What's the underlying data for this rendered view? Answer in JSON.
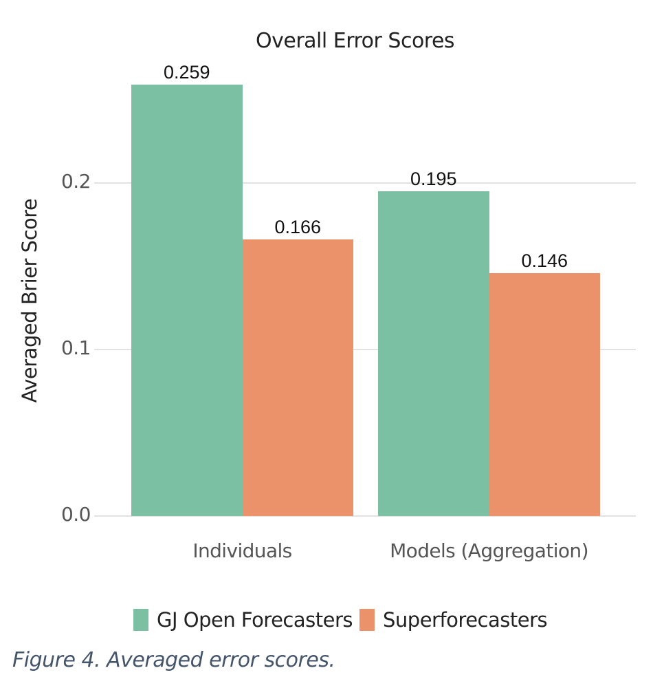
{
  "chart_data": {
    "type": "bar",
    "title": "Overall Error Scores",
    "xlabel": "",
    "ylabel": "Averaged Brier Score",
    "categories": [
      "Individuals",
      "Models (Aggregation)"
    ],
    "series": [
      {
        "name": "GJ Open Forecasters",
        "color": "#7cc0a4",
        "values": [
          0.259,
          0.195
        ]
      },
      {
        "name": "Superforecasters",
        "color": "#ec926a",
        "values": [
          0.166,
          0.146
        ]
      }
    ],
    "data_labels": [
      [
        "0.259",
        "0.195"
      ],
      [
        "0.166",
        "0.146"
      ]
    ],
    "ylim": [
      0,
      0.27
    ],
    "yticks": [
      0.0,
      0.1,
      0.2
    ],
    "ytick_labels": [
      "0.0",
      "0.1",
      "0.2"
    ],
    "grid": true,
    "legend_position": "bottom"
  },
  "caption": "Figure 4. Averaged error scores."
}
